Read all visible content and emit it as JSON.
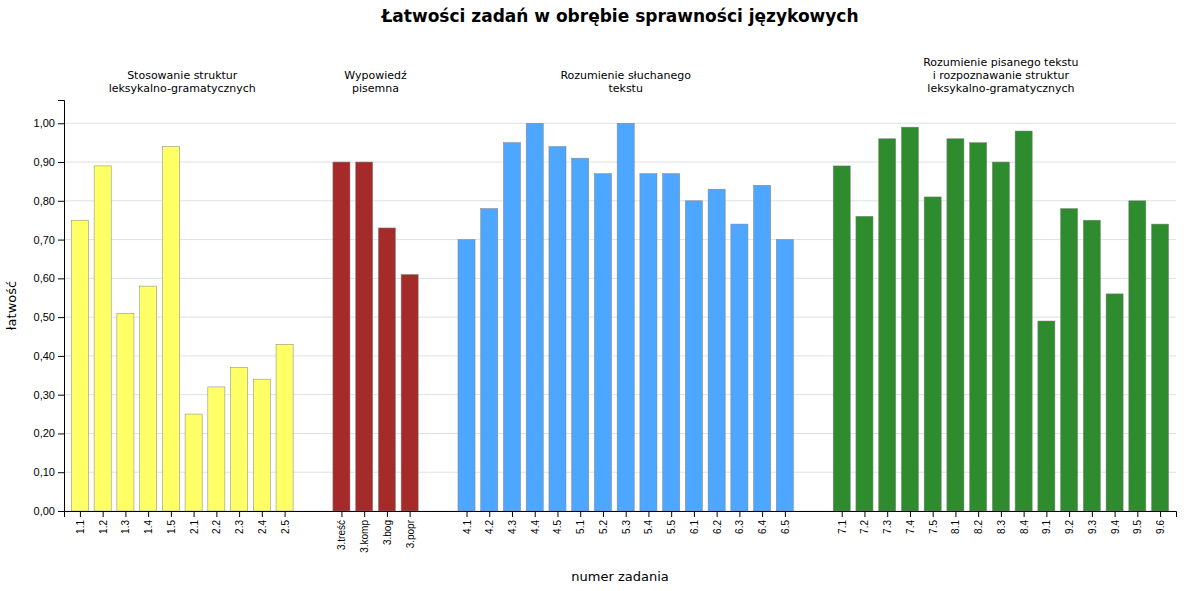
{
  "chart_data": {
    "type": "bar",
    "title": "Łatwości zadań w obrębie sprawności językowych",
    "xlabel": "numer zadania",
    "ylabel": "łatwość",
    "ylim": [
      0,
      1.06
    ],
    "yticks": [
      {
        "value": 0.0,
        "label": "0,00"
      },
      {
        "value": 0.1,
        "label": "0,10"
      },
      {
        "value": 0.2,
        "label": "0,20"
      },
      {
        "value": 0.3,
        "label": "0,30"
      },
      {
        "value": 0.4,
        "label": "0,40"
      },
      {
        "value": 0.5,
        "label": "0,50"
      },
      {
        "value": 0.6,
        "label": "0,60"
      },
      {
        "value": 0.7,
        "label": "0,70"
      },
      {
        "value": 0.8,
        "label": "0,80"
      },
      {
        "value": 0.9,
        "label": "0,90"
      },
      {
        "value": 1.0,
        "label": "1,00"
      }
    ],
    "grid": true,
    "categories": [
      "1.1",
      "1.2",
      "1.3",
      "1.4",
      "1.5",
      "2.1",
      "2.2",
      "2.3",
      "2.4",
      "2.5",
      "3.treść",
      "3.komp",
      "3.bog",
      "3.popr",
      "4.1",
      "4.2",
      "4.3",
      "4.4",
      "4.5",
      "5.1",
      "5.2",
      "5.3",
      "5.4",
      "5.5",
      "6.1",
      "6.2",
      "6.3",
      "6.4",
      "6.5",
      "7.1",
      "7.2",
      "7.3",
      "7.4",
      "7.5",
      "8.1",
      "8.2",
      "8.3",
      "8.4",
      "9.1",
      "9.2",
      "9.3",
      "9.4",
      "9.5",
      "9.6"
    ],
    "values": [
      0.75,
      0.89,
      0.51,
      0.58,
      0.94,
      0.25,
      0.32,
      0.37,
      0.34,
      0.43,
      0.9,
      0.9,
      0.73,
      0.61,
      0.7,
      0.78,
      0.95,
      1.0,
      0.94,
      0.91,
      0.87,
      1.0,
      0.87,
      0.87,
      0.8,
      0.83,
      0.74,
      0.84,
      0.7,
      0.89,
      0.76,
      0.96,
      0.99,
      0.81,
      0.96,
      0.95,
      0.9,
      0.98,
      0.49,
      0.78,
      0.75,
      0.56,
      0.8,
      0.74
    ],
    "colors": [
      "#FFFF66",
      "#FFFF66",
      "#FFFF66",
      "#FFFF66",
      "#FFFF66",
      "#FFFF66",
      "#FFFF66",
      "#FFFF66",
      "#FFFF66",
      "#FFFF66",
      "#A52A2A",
      "#A52A2A",
      "#A52A2A",
      "#A52A2A",
      "#4DA6FF",
      "#4DA6FF",
      "#4DA6FF",
      "#4DA6FF",
      "#4DA6FF",
      "#4DA6FF",
      "#4DA6FF",
      "#4DA6FF",
      "#4DA6FF",
      "#4DA6FF",
      "#4DA6FF",
      "#4DA6FF",
      "#4DA6FF",
      "#4DA6FF",
      "#4DA6FF",
      "#2E8B2E",
      "#2E8B2E",
      "#2E8B2E",
      "#2E8B2E",
      "#2E8B2E",
      "#2E8B2E",
      "#2E8B2E",
      "#2E8B2E",
      "#2E8B2E",
      "#2E8B2E",
      "#2E8B2E",
      "#2E8B2E",
      "#2E8B2E",
      "#2E8B2E",
      "#2E8B2E"
    ],
    "groups": [
      {
        "start": 0,
        "end": 9,
        "label": "Stosowanie struktur\nleksykalno-gramatycznych"
      },
      {
        "start": 10,
        "end": 13,
        "label": "Wypowiedź\npisemna"
      },
      {
        "start": 14,
        "end": 28,
        "label": "Rozumienie słuchanego\ntekstu"
      },
      {
        "start": 29,
        "end": 43,
        "label": "Rozumienie pisanego tekstu\ni rozpoznawanie struktur\nleksykalno-gramatycznych"
      }
    ]
  }
}
